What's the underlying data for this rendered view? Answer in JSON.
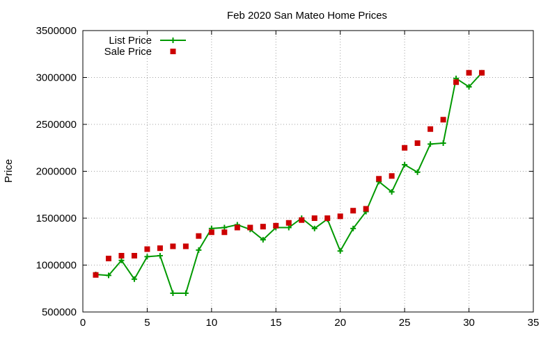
{
  "chart_data": {
    "type": "line",
    "title": "Feb 2020 San Mateo Home Prices",
    "xlabel": "",
    "ylabel": "Price",
    "xlim": [
      0,
      35
    ],
    "ylim": [
      500000,
      3500000
    ],
    "xticks": [
      0,
      5,
      10,
      15,
      20,
      25,
      30,
      35
    ],
    "yticks": [
      500000,
      1000000,
      1500000,
      2000000,
      2500000,
      3000000,
      3500000
    ],
    "xtick_labels": [
      "0",
      "5",
      "10",
      "15",
      "20",
      "25",
      "30",
      "35"
    ],
    "ytick_labels": [
      "500000",
      "1000000",
      "1500000",
      "2000000",
      "2500000",
      "3000000",
      "3500000"
    ],
    "grid": true,
    "legend_position": "top-left",
    "series": [
      {
        "name": "List Price",
        "style": "line-plus",
        "color": "#009900",
        "x": [
          1,
          2,
          3,
          4,
          5,
          6,
          7,
          8,
          9,
          10,
          11,
          12,
          13,
          14,
          15,
          16,
          17,
          18,
          19,
          20,
          21,
          22,
          23,
          24,
          25,
          26,
          27,
          28,
          29,
          30,
          31
        ],
        "y": [
          900000,
          890000,
          1050000,
          850000,
          1090000,
          1100000,
          700000,
          700000,
          1160000,
          1390000,
          1400000,
          1430000,
          1380000,
          1270000,
          1400000,
          1400000,
          1500000,
          1390000,
          1490000,
          1150000,
          1390000,
          1570000,
          1890000,
          1780000,
          2070000,
          1990000,
          2290000,
          2300000,
          2990000,
          2900000,
          3050000
        ]
      },
      {
        "name": "Sale Price",
        "style": "square",
        "color": "#cc0000",
        "x": [
          1,
          2,
          3,
          4,
          5,
          6,
          7,
          8,
          9,
          10,
          11,
          12,
          13,
          14,
          15,
          16,
          17,
          18,
          19,
          20,
          21,
          22,
          23,
          24,
          25,
          26,
          27,
          28,
          29,
          30,
          31
        ],
        "y": [
          895000,
          1070000,
          1100000,
          1100000,
          1170000,
          1180000,
          1200000,
          1200000,
          1310000,
          1350000,
          1350000,
          1400000,
          1400000,
          1410000,
          1420000,
          1450000,
          1480000,
          1500000,
          1500000,
          1520000,
          1580000,
          1600000,
          1920000,
          1950000,
          2250000,
          2300000,
          2450000,
          2550000,
          2950000,
          3050000,
          3050000
        ]
      }
    ]
  }
}
